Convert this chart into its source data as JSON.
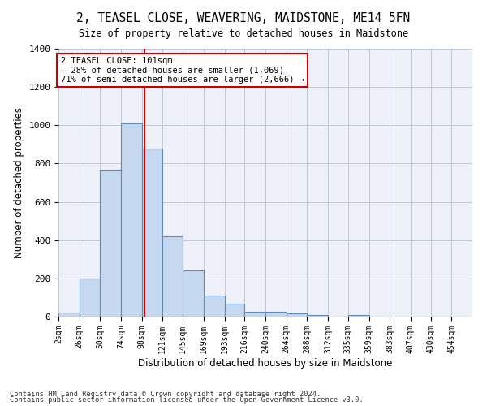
{
  "title": "2, TEASEL CLOSE, WEAVERING, MAIDSTONE, ME14 5FN",
  "subtitle": "Size of property relative to detached houses in Maidstone",
  "xlabel": "Distribution of detached houses by size in Maidstone",
  "ylabel": "Number of detached properties",
  "bin_edges": [
    2,
    26,
    50,
    74,
    98,
    121,
    145,
    169,
    193,
    216,
    240,
    264,
    288,
    312,
    335,
    359,
    383,
    407,
    430,
    454,
    478
  ],
  "bar_heights": [
    20,
    200,
    770,
    1010,
    880,
    420,
    240,
    110,
    70,
    25,
    25,
    15,
    10,
    0,
    10,
    0,
    0,
    0,
    0,
    0
  ],
  "bar_color": "#c5d8f0",
  "bar_edge_color": "#5b8db8",
  "property_size": 101,
  "property_label": "2 TEASEL CLOSE: 101sqm",
  "pct_smaller": "28% of detached houses are smaller (1,069)",
  "pct_larger": "71% of semi-detached houses are larger (2,666)",
  "vline_color": "#cc0000",
  "annotation_box_color": "#ffffff",
  "annotation_box_edge": "#cc0000",
  "ylim": [
    0,
    1400
  ],
  "yticks": [
    0,
    200,
    400,
    600,
    800,
    1000,
    1200,
    1400
  ],
  "grid_color": "#c0c8d8",
  "bg_color": "#eef2f8",
  "footnote1": "Contains HM Land Registry data © Crown copyright and database right 2024.",
  "footnote2": "Contains public sector information licensed under the Open Government Licence v3.0."
}
